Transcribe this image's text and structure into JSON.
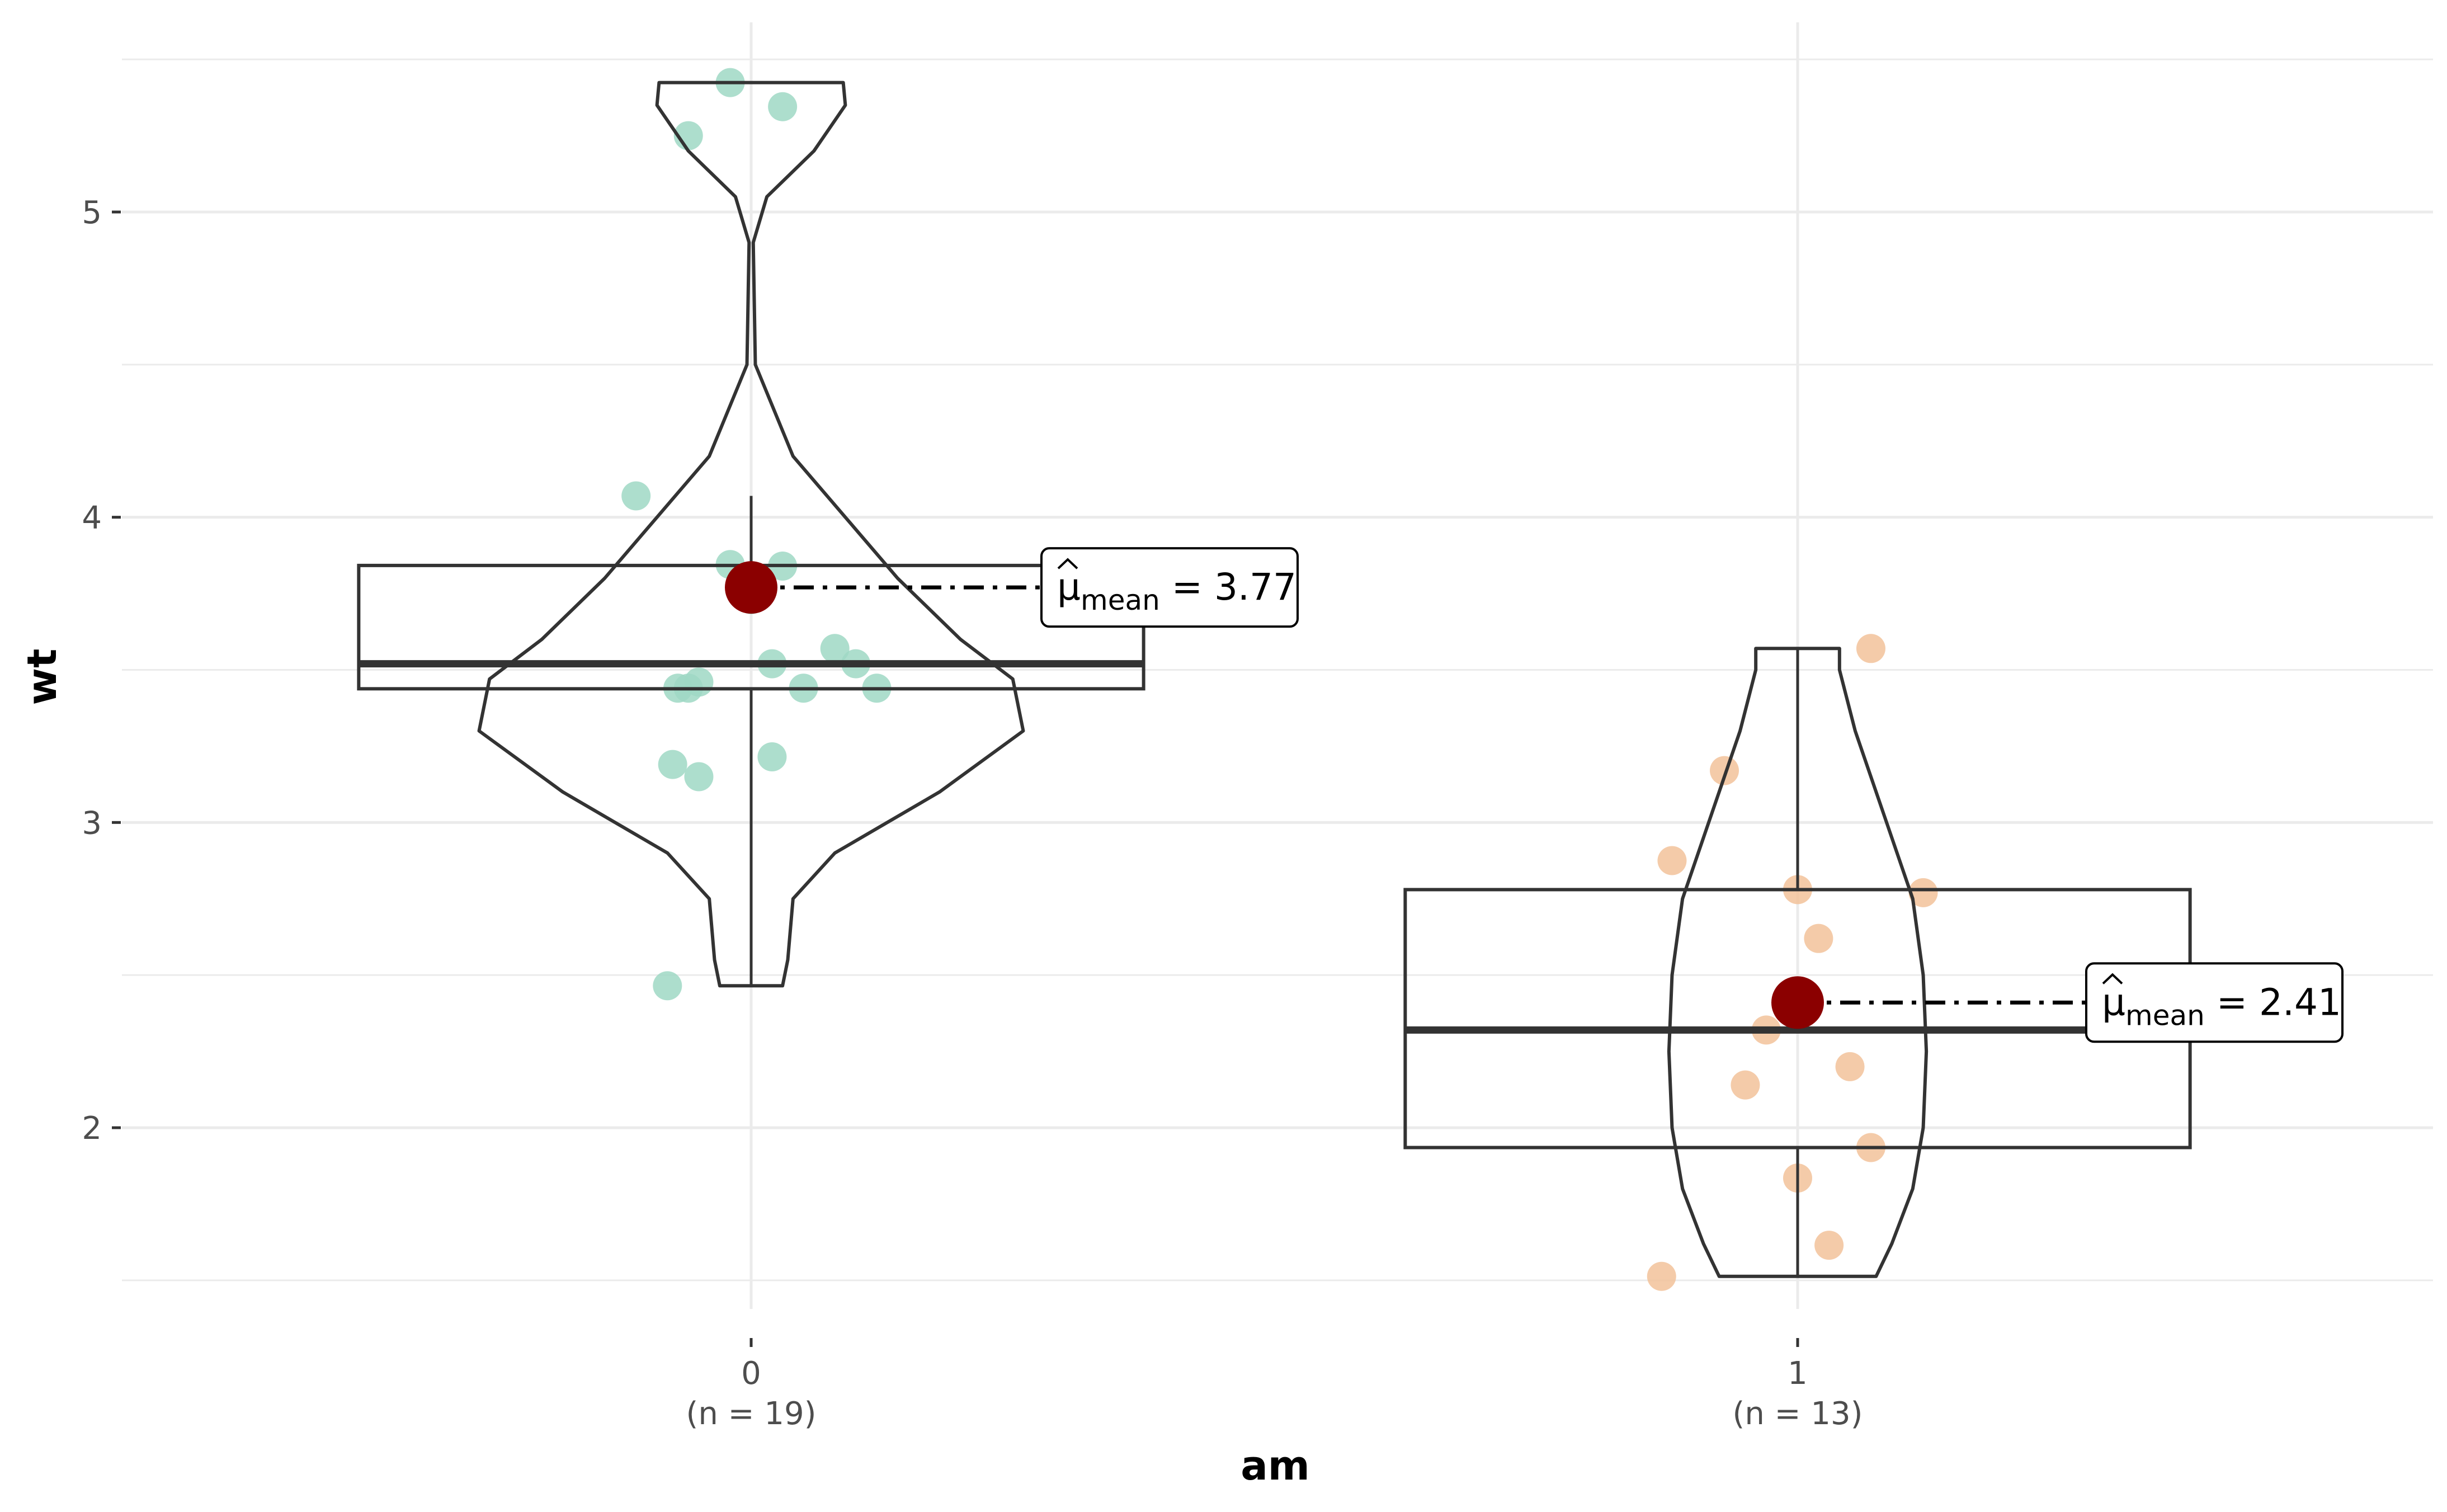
{
  "chart_data": {
    "type": "box-violin",
    "xlabel": "am",
    "ylabel": "wt",
    "ylim": [
      1.33,
      5.6
    ],
    "y_ticks": [
      2,
      3,
      4,
      5
    ],
    "grid": true,
    "groups": [
      {
        "name": "0",
        "n_label": "(n = 19)",
        "point_color": "#9fd8c4",
        "box": {
          "min": 2.465,
          "q1": 3.438,
          "median": 3.52,
          "q3": 3.842,
          "max": 4.07
        },
        "mean": 3.77,
        "mean_label": "3.77",
        "points": [
          {
            "dx": -0.02,
            "y": 5.424
          },
          {
            "dx": 0.03,
            "y": 5.345
          },
          {
            "dx": -0.06,
            "y": 5.25
          },
          {
            "dx": -0.11,
            "y": 4.07
          },
          {
            "dx": -0.02,
            "y": 3.845
          },
          {
            "dx": 0.03,
            "y": 3.84
          },
          {
            "dx": 0.0,
            "y": 3.73
          },
          {
            "dx": 0.08,
            "y": 3.57
          },
          {
            "dx": -0.07,
            "y": 3.44
          },
          {
            "dx": -0.06,
            "y": 3.44
          },
          {
            "dx": 0.05,
            "y": 3.44
          },
          {
            "dx": 0.12,
            "y": 3.44
          },
          {
            "dx": -0.05,
            "y": 3.46
          },
          {
            "dx": 0.1,
            "y": 3.52
          },
          {
            "dx": 0.02,
            "y": 3.52
          },
          {
            "dx": 0.02,
            "y": 3.215
          },
          {
            "dx": -0.075,
            "y": 3.19
          },
          {
            "dx": -0.05,
            "y": 3.15
          },
          {
            "dx": -0.08,
            "y": 2.465
          }
        ],
        "density": [
          {
            "y": 2.465,
            "w": 0.03
          },
          {
            "y": 2.55,
            "w": 0.035
          },
          {
            "y": 2.75,
            "w": 0.04
          },
          {
            "y": 2.9,
            "w": 0.08
          },
          {
            "y": 3.1,
            "w": 0.18
          },
          {
            "y": 3.3,
            "w": 0.26
          },
          {
            "y": 3.47,
            "w": 0.25
          },
          {
            "y": 3.6,
            "w": 0.2
          },
          {
            "y": 3.8,
            "w": 0.14
          },
          {
            "y": 4.0,
            "w": 0.09
          },
          {
            "y": 4.2,
            "w": 0.04
          },
          {
            "y": 4.5,
            "w": 0.004
          },
          {
            "y": 4.9,
            "w": 0.002
          },
          {
            "y": 5.05,
            "w": 0.015
          },
          {
            "y": 5.2,
            "w": 0.06
          },
          {
            "y": 5.35,
            "w": 0.09
          },
          {
            "y": 5.424,
            "w": 0.088
          }
        ]
      },
      {
        "name": "1",
        "n_label": "(n = 13)",
        "point_color": "#f2c29a",
        "box": {
          "min": 1.513,
          "q1": 1.935,
          "median": 2.32,
          "q3": 2.78,
          "max": 3.57
        },
        "mean": 2.41,
        "mean_label": "2.41",
        "points": [
          {
            "dx": 0.07,
            "y": 3.57
          },
          {
            "dx": -0.07,
            "y": 3.17
          },
          {
            "dx": -0.12,
            "y": 2.875
          },
          {
            "dx": 0.0,
            "y": 2.78
          },
          {
            "dx": 0.12,
            "y": 2.77
          },
          {
            "dx": 0.02,
            "y": 2.62
          },
          {
            "dx": -0.03,
            "y": 2.32
          },
          {
            "dx": 0.05,
            "y": 2.2
          },
          {
            "dx": -0.05,
            "y": 2.14
          },
          {
            "dx": 0.07,
            "y": 1.935
          },
          {
            "dx": 0.0,
            "y": 1.835
          },
          {
            "dx": 0.03,
            "y": 1.615
          },
          {
            "dx": -0.13,
            "y": 1.513
          }
        ],
        "density": [
          {
            "y": 1.513,
            "w": 0.075
          },
          {
            "y": 1.62,
            "w": 0.09
          },
          {
            "y": 1.8,
            "w": 0.11
          },
          {
            "y": 2.0,
            "w": 0.12
          },
          {
            "y": 2.25,
            "w": 0.123
          },
          {
            "y": 2.5,
            "w": 0.12
          },
          {
            "y": 2.75,
            "w": 0.11
          },
          {
            "y": 3.0,
            "w": 0.085
          },
          {
            "y": 3.3,
            "w": 0.055
          },
          {
            "y": 3.5,
            "w": 0.04
          },
          {
            "y": 3.57,
            "w": 0.04
          }
        ]
      }
    ],
    "colors": {
      "mean_point": "#8b0000",
      "outline": "#333333",
      "grid": "#ebebeb"
    }
  }
}
